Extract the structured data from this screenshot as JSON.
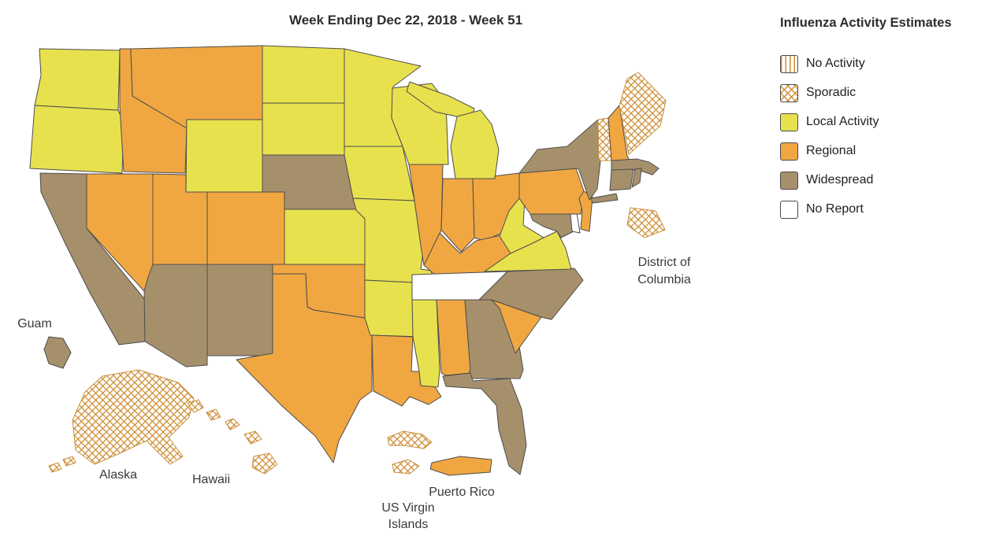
{
  "title": "Week Ending Dec 22, 2018 - Week 51",
  "legend": {
    "title": "Influenza Activity Estimates",
    "items": [
      {
        "label": "No Activity",
        "level": "no_activity"
      },
      {
        "label": "Sporadic",
        "level": "sporadic"
      },
      {
        "label": "Local Activity",
        "level": "local"
      },
      {
        "label": "Regional",
        "level": "regional"
      },
      {
        "label": "Widespread",
        "level": "widespread"
      },
      {
        "label": "No Report",
        "level": "no_report"
      }
    ]
  },
  "colors": {
    "levels": {
      "local": "#e8e14e",
      "regional": "#f0a742",
      "widespread": "#a6906b",
      "no_report": "#ffffff"
    },
    "pattern_stroke": "#cf8f35",
    "pattern_border": "#c98e3c",
    "state_border": "#4c4c4c",
    "text": "#3a3a3a"
  },
  "map_labels": {
    "guam": "Guam",
    "alaska": "Alaska",
    "hawaii": "Hawaii",
    "usvi_line1": "US Virgin",
    "usvi_line2": "Islands",
    "puerto_rico": "Puerto Rico",
    "dc_line1": "District of",
    "dc_line2": "Columbia"
  },
  "chart_data": {
    "type": "choropleth",
    "title": "Week Ending Dec 22, 2018 - Week 51",
    "week": "Week 51",
    "week_ending": "Dec 22, 2018",
    "legend_title": "Influenza Activity Estimates",
    "levels_order": [
      "no_activity",
      "sporadic",
      "local",
      "regional",
      "widespread",
      "no_report"
    ],
    "states": {
      "WA": "local",
      "OR": "local",
      "CA": "widespread",
      "NV": "regional",
      "ID": "regional",
      "MT": "regional",
      "WY": "local",
      "UT": "regional",
      "CO": "regional",
      "AZ": "widespread",
      "NM": "widespread",
      "ND": "local",
      "SD": "local",
      "NE": "widespread",
      "KS": "local",
      "OK": "regional",
      "TX": "regional",
      "MN": "local",
      "IA": "local",
      "MO": "local",
      "AR": "local",
      "LA": "regional",
      "WI": "local",
      "IL": "regional",
      "MI": "local",
      "IN": "regional",
      "OH": "regional",
      "KY": "regional",
      "TN": "no_report",
      "MS": "local",
      "AL": "regional",
      "GA": "widespread",
      "FL": "widespread",
      "SC": "regional",
      "NC": "widespread",
      "VA": "local",
      "WV": "local",
      "MD": "widespread",
      "DE": "no_report",
      "PA": "regional",
      "NJ": "regional",
      "NY": "widespread",
      "VT": "sporadic",
      "NH": "regional",
      "ME": "sporadic",
      "MA": "widespread",
      "CT": "widespread",
      "RI": "widespread",
      "DC": "sporadic",
      "AK": "sporadic",
      "HI": "sporadic",
      "GU": "widespread",
      "PR": "regional",
      "VI": "sporadic"
    }
  }
}
